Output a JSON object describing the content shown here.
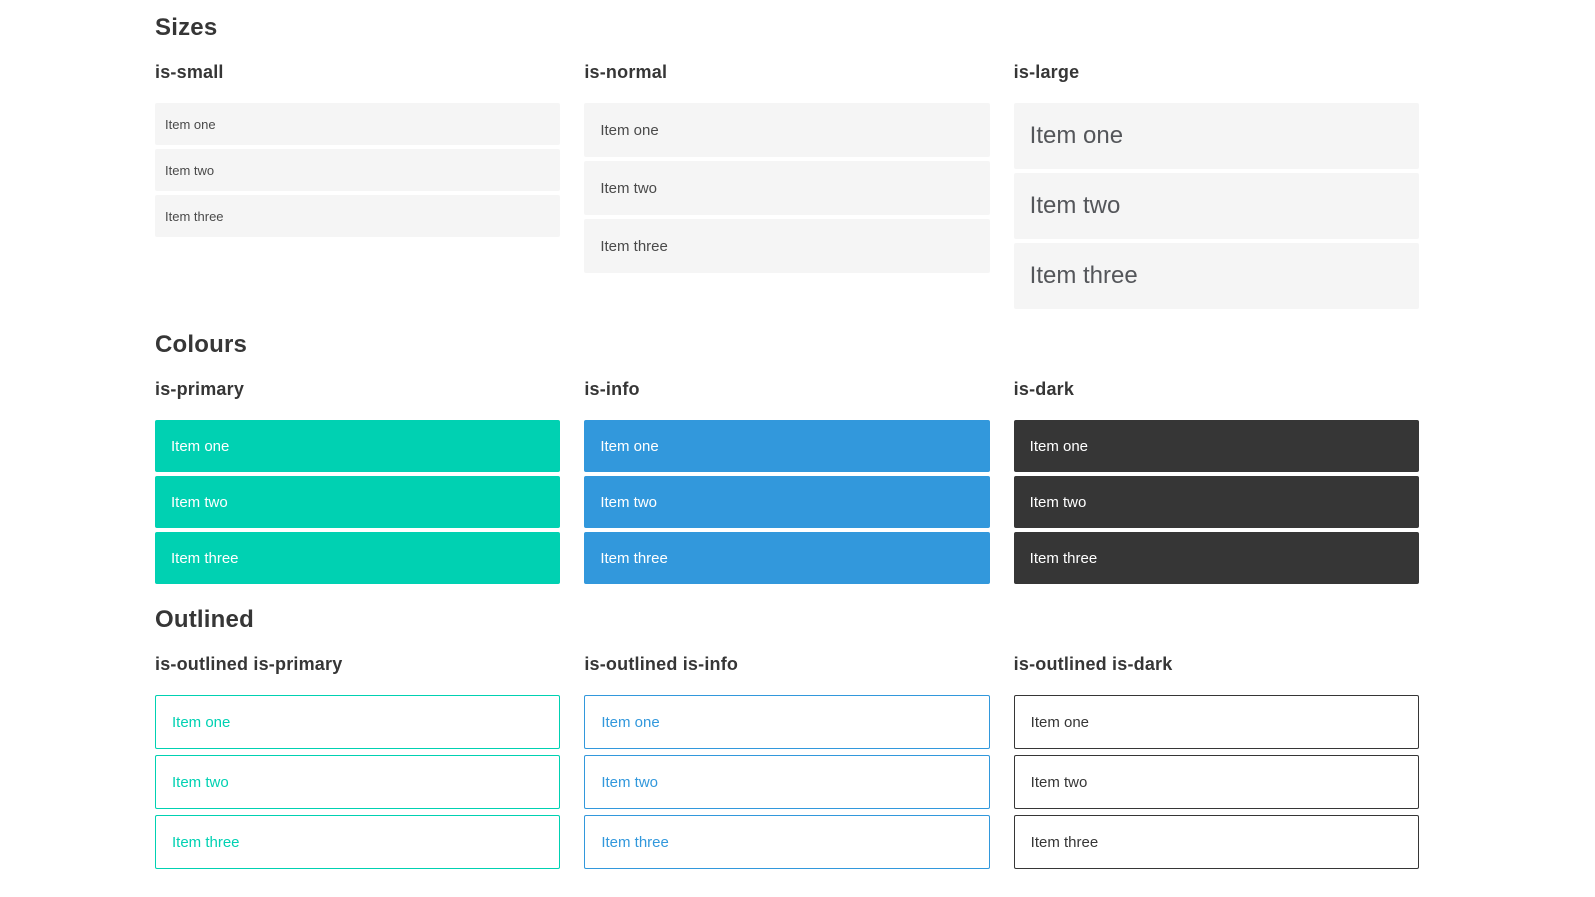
{
  "sections": [
    {
      "title": "Sizes",
      "columns": [
        {
          "heading": "is-small",
          "items": [
            "Item one",
            "Item two",
            "Item three"
          ]
        },
        {
          "heading": "is-normal",
          "items": [
            "Item one",
            "Item two",
            "Item three"
          ]
        },
        {
          "heading": "is-large",
          "items": [
            "Item one",
            "Item two",
            "Item three"
          ]
        }
      ]
    },
    {
      "title": "Colours",
      "columns": [
        {
          "heading": "is-primary",
          "items": [
            "Item one",
            "Item two",
            "Item three"
          ]
        },
        {
          "heading": "is-info",
          "items": [
            "Item one",
            "Item two",
            "Item three"
          ]
        },
        {
          "heading": "is-dark",
          "items": [
            "Item one",
            "Item two",
            "Item three"
          ]
        }
      ]
    },
    {
      "title": "Outlined",
      "columns": [
        {
          "heading": "is-outlined is-primary",
          "items": [
            "Item one",
            "Item two",
            "Item three"
          ]
        },
        {
          "heading": "is-outlined is-info",
          "items": [
            "Item one",
            "Item two",
            "Item three"
          ]
        },
        {
          "heading": "is-outlined is-dark",
          "items": [
            "Item one",
            "Item two",
            "Item three"
          ]
        }
      ]
    }
  ],
  "colors": {
    "primary": "#00d1b2",
    "info": "#3298dc",
    "dark": "#363636",
    "item_background": "#f5f5f5",
    "heading_text": "#363636",
    "item_text": "#4a4a4a",
    "item_text_on_color": "#ffffff"
  }
}
